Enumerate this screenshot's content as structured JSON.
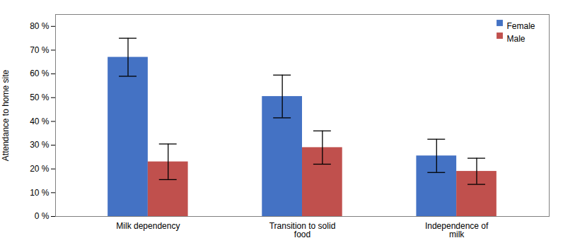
{
  "chart_data": {
    "type": "bar",
    "ylabel": "Attendance to home site",
    "categories": [
      "Milk dependency",
      "Transition to solid\nfood",
      "Independence of\nmilk"
    ],
    "series": [
      {
        "name": "Female",
        "color": "#4472C4",
        "values": [
          0.67,
          0.505,
          0.255
        ],
        "errors": [
          0.08,
          0.09,
          0.07
        ]
      },
      {
        "name": "Male",
        "color": "#C0504D",
        "values": [
          0.23,
          0.29,
          0.19
        ],
        "errors": [
          0.075,
          0.07,
          0.055
        ]
      }
    ],
    "ylim": [
      0,
      0.85
    ],
    "yticks": [
      {
        "value": 0.0,
        "label": "0 %"
      },
      {
        "value": 0.1,
        "label": "10 %"
      },
      {
        "value": 0.2,
        "label": "20 %"
      },
      {
        "value": 0.3,
        "label": "30 %"
      },
      {
        "value": 0.4,
        "label": "40 %"
      },
      {
        "value": 0.5,
        "label": "50 %"
      },
      {
        "value": 0.6,
        "label": "60 %"
      },
      {
        "value": 0.7,
        "label": "70 %"
      },
      {
        "value": 0.8,
        "label": "80 %"
      }
    ],
    "grid": false,
    "legend": "upper right"
  }
}
